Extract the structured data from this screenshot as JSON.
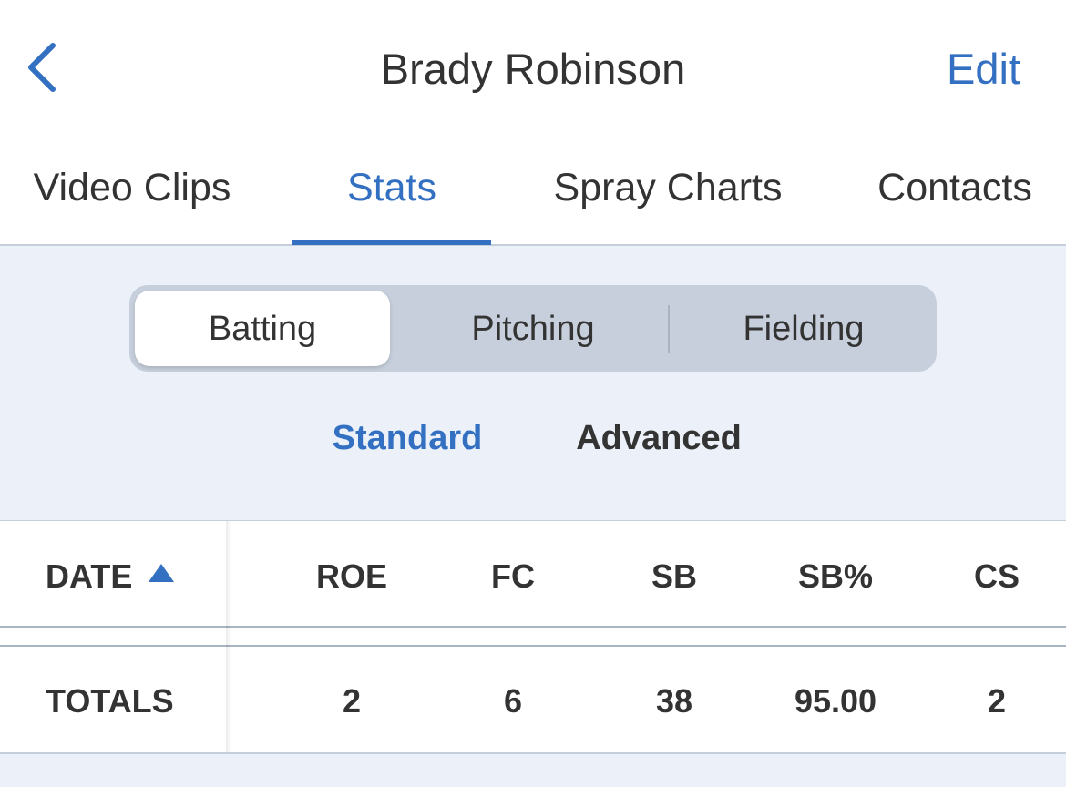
{
  "header": {
    "title": "Brady Robinson",
    "action": "Edit"
  },
  "tabs": [
    "Video Clips",
    "Stats",
    "Spray Charts",
    "Contacts"
  ],
  "segments": [
    "Batting",
    "Pitching",
    "Fielding"
  ],
  "subtabs": [
    "Standard",
    "Advanced"
  ],
  "table": {
    "columns": [
      "DATE",
      "ROE",
      "FC",
      "SB",
      "SB%",
      "CS"
    ],
    "rows": [
      [
        "TOTALS",
        "2",
        "6",
        "38",
        "95.00",
        "2"
      ]
    ]
  }
}
